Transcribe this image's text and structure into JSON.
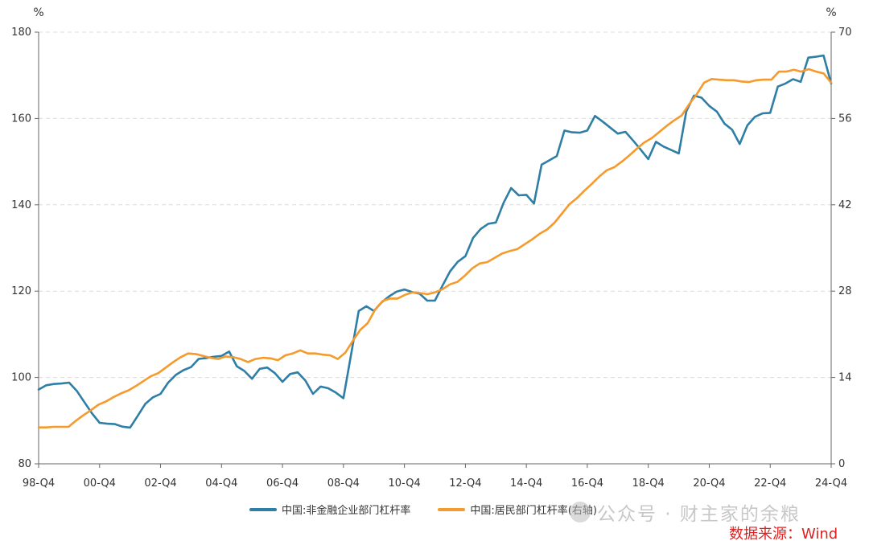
{
  "chart_data": {
    "type": "line",
    "left_axis": {
      "unit": "%",
      "ylim": [
        80,
        180
      ],
      "ticks": [
        80,
        100,
        120,
        140,
        160,
        180
      ]
    },
    "right_axis": {
      "unit": "%",
      "ylim": [
        0,
        70
      ],
      "ticks": [
        0,
        14,
        28,
        42,
        56,
        70
      ]
    },
    "x_ticks": [
      "98-Q4",
      "00-Q4",
      "02-Q4",
      "04-Q4",
      "06-Q4",
      "08-Q4",
      "10-Q4",
      "12-Q4",
      "14-Q4",
      "16-Q4",
      "18-Q4",
      "20-Q4",
      "22-Q4",
      "24-Q4"
    ],
    "grid": true,
    "legend_position": "bottom",
    "series": [
      {
        "name": "中国:非金融企业部门杠杆率",
        "axis": "left",
        "color": "#2e7ea6",
        "values": [
          97.2,
          98.2,
          98.5,
          98.6,
          98.8,
          96.9,
          94.3,
          91.7,
          89.5,
          89.3,
          89.2,
          88.6,
          88.4,
          91.1,
          93.9,
          95.4,
          96.2,
          98.8,
          100.6,
          101.7,
          102.4,
          104.3,
          104.5,
          104.8,
          105.0,
          106.0,
          102.6,
          101.5,
          99.7,
          102.0,
          102.3,
          101.0,
          99.0,
          100.8,
          101.2,
          99.3,
          96.2,
          97.9,
          97.5,
          96.5,
          95.2,
          105.3,
          115.4,
          116.5,
          115.4,
          117.4,
          118.8,
          119.9,
          120.4,
          119.8,
          119.4,
          117.8,
          117.8,
          121.3,
          124.6,
          126.8,
          128.1,
          132.3,
          134.4,
          135.6,
          135.9,
          140.4,
          143.9,
          142.2,
          142.3,
          140.3,
          149.3,
          150.3,
          151.3,
          157.2,
          156.8,
          156.7,
          157.2,
          160.6,
          159.3,
          157.9,
          156.5,
          156.9,
          154.9,
          152.8,
          150.6,
          154.6,
          153.5,
          152.7,
          151.9,
          161.7,
          165.3,
          164.8,
          162.9,
          161.6,
          158.8,
          157.4,
          154.1,
          158.4,
          160.4,
          161.2,
          161.3,
          167.4,
          168.1,
          169.1,
          168.5,
          174.1,
          174.3,
          174.6,
          168.1
        ]
      },
      {
        "name": "中国:居民部门杠杆率(右轴)",
        "axis": "right",
        "color": "#f59a2c",
        "values": [
          5.9,
          5.9,
          6.0,
          6.0,
          6.0,
          7.0,
          7.9,
          8.7,
          9.6,
          10.1,
          10.8,
          11.4,
          11.9,
          12.6,
          13.4,
          14.2,
          14.7,
          15.6,
          16.5,
          17.3,
          17.9,
          17.8,
          17.5,
          17.2,
          17.0,
          17.4,
          17.3,
          17.0,
          16.5,
          17.0,
          17.2,
          17.1,
          16.8,
          17.6,
          17.9,
          18.4,
          17.9,
          17.9,
          17.7,
          17.6,
          17.0,
          18.0,
          19.9,
          21.7,
          22.8,
          25.0,
          26.4,
          26.8,
          26.8,
          27.4,
          27.8,
          27.7,
          27.5,
          27.8,
          28.3,
          29.1,
          29.5,
          30.5,
          31.7,
          32.5,
          32.7,
          33.4,
          34.1,
          34.5,
          34.8,
          35.6,
          36.4,
          37.3,
          38.0,
          39.1,
          40.6,
          42.1,
          43.1,
          44.3,
          45.4,
          46.6,
          47.6,
          48.1,
          49.0,
          50.0,
          51.1,
          52.1,
          52.8,
          53.8,
          54.8,
          55.7,
          56.5,
          58.3,
          59.9,
          61.8,
          62.4,
          62.3,
          62.2,
          62.2,
          62.0,
          61.9,
          62.2,
          62.3,
          62.3,
          63.6,
          63.6,
          63.9,
          63.6,
          64.0,
          63.6,
          63.3,
          61.8
        ]
      }
    ]
  },
  "legend": {
    "items": [
      "中国:非金融企业部门杠杆率",
      "中国:居民部门杠杆率(右轴)"
    ]
  },
  "watermark": "公众号 · 财主家的余粮",
  "source_note": "数据来源：Wind",
  "colors": {
    "grid": "#dcdcdc",
    "axis": "#666666",
    "source": "#e02020"
  }
}
